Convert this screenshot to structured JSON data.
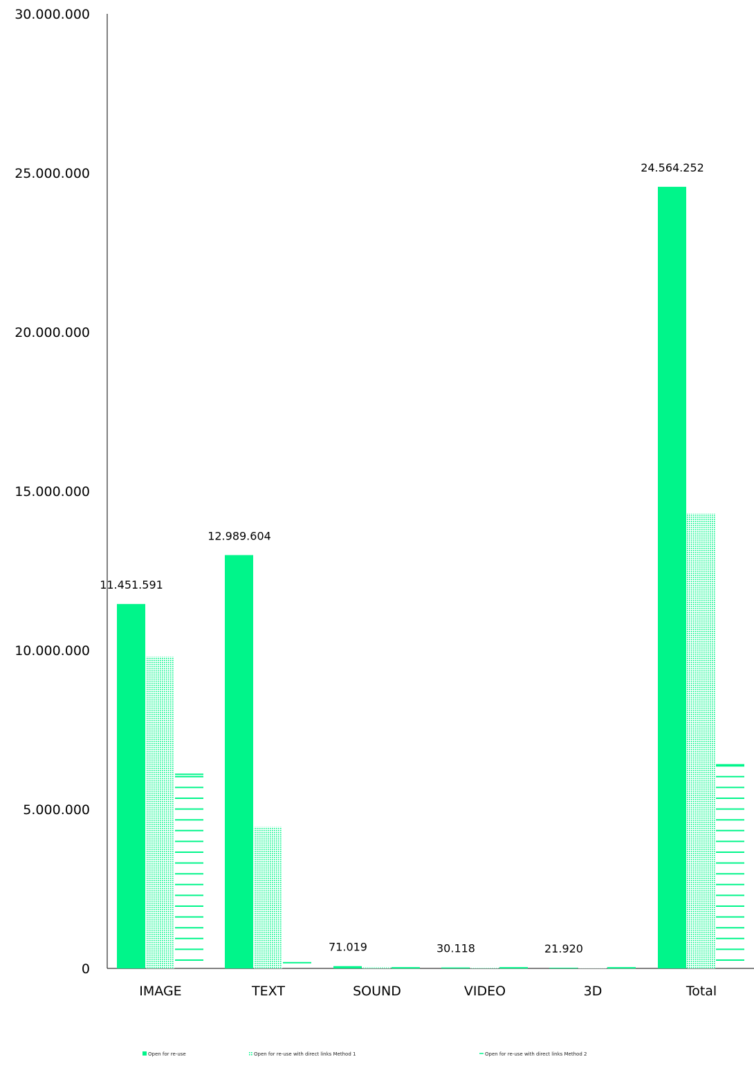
{
  "chart_data": {
    "type": "bar",
    "categories": [
      "IMAGE",
      "TEXT",
      "SOUND",
      "VIDEO",
      "3D",
      "Total"
    ],
    "series": [
      {
        "name": "Open for re-use",
        "values": [
          11451591,
          12989604,
          71019,
          30118,
          21920,
          24564252
        ],
        "color": "#00F58A",
        "pattern": "solid"
      },
      {
        "name": "Open for re-use with direct links Method 1",
        "values": [
          9800000,
          4450000,
          30000,
          20000,
          10000,
          14300000
        ],
        "color": "#00F58A",
        "pattern": "dots"
      },
      {
        "name": "Open for re-use with direct links Method 2",
        "values": [
          6100000,
          180000,
          20000,
          20000,
          20000,
          6400000
        ],
        "color": "#00F58A",
        "pattern": "hlines"
      }
    ],
    "data_labels": [
      "11.451.591",
      "12.989.604",
      "71.019",
      "30.118",
      "21.920",
      "24.564.252"
    ],
    "y_ticks": [
      "0",
      "5.000.000",
      "10.000.000",
      "15.000.000",
      "20.000.000",
      "25.000.000",
      "30.000.000"
    ],
    "y_tick_values": [
      0,
      5000000,
      10000000,
      15000000,
      20000000,
      25000000,
      30000000
    ],
    "ylim": [
      0,
      30000000
    ],
    "title": "",
    "xlabel": "",
    "ylabel": "",
    "grid": false,
    "legend_position": "bottom"
  }
}
